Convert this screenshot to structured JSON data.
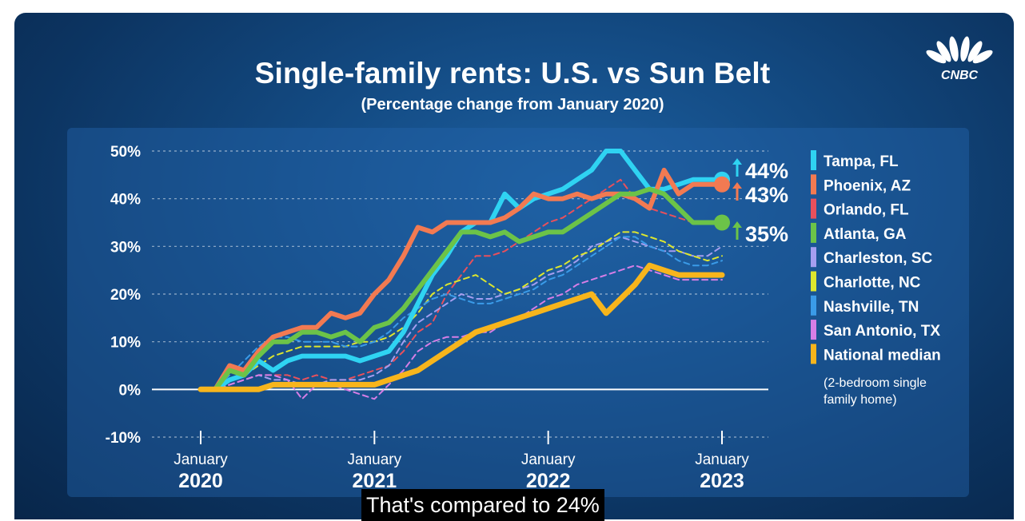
{
  "header": {
    "title": "Single-family rents: U.S. vs Sun Belt",
    "subtitle": "(Percentage change from January 2020)",
    "logo_text": "CNBC"
  },
  "caption": "That's compared to 24%",
  "colors": {
    "tampa": "#2fd3f2",
    "phoenix": "#f27a52",
    "orlando": "#e8505c",
    "atlanta": "#6cc348",
    "charleston": "#a59ef0",
    "charlotte": "#dde62e",
    "nashville": "#3a9be8",
    "san_antonio": "#d67ee6",
    "national": "#f7b51c"
  },
  "chart_data": {
    "type": "line",
    "title": "Single-family rents: U.S. vs Sun Belt",
    "subtitle": "(Percentage change from January 2020)",
    "y_unit": "%",
    "ylim": [
      -10,
      50
    ],
    "yticks": [
      "50%",
      "40%",
      "30%",
      "20%",
      "10%",
      "0%",
      "-10%"
    ],
    "x_range": [
      0,
      36
    ],
    "x_ticks": [
      {
        "x": 0,
        "month": "January",
        "year": "2020"
      },
      {
        "x": 12,
        "month": "January",
        "year": "2021"
      },
      {
        "x": 24,
        "month": "January",
        "year": "2022"
      },
      {
        "x": 36,
        "month": "January",
        "year": "2023"
      }
    ],
    "legend_position": "right",
    "note": "(2-bedroom single family home)",
    "note_lines": [
      "(2-bedroom single",
      "family home)"
    ],
    "end_labels": [
      {
        "series": "Tampa, FL",
        "text": "44%",
        "value": 44
      },
      {
        "series": "Phoenix, AZ",
        "text": "43%",
        "value": 43
      },
      {
        "series": "Atlanta, GA",
        "text": "35%",
        "value": 35
      }
    ],
    "series": [
      {
        "name": "Tampa, FL",
        "color": "#2fd3f2",
        "width": 6,
        "dash": false,
        "values": [
          0,
          0,
          2,
          3,
          6,
          4,
          6,
          7,
          7,
          7,
          7,
          6,
          7,
          8,
          12,
          18,
          24,
          28,
          33,
          35,
          35,
          41,
          38,
          40,
          41,
          42,
          44,
          46,
          50,
          50,
          46,
          42,
          42,
          43,
          44,
          44,
          44
        ]
      },
      {
        "name": "Phoenix, AZ",
        "color": "#f27a52",
        "width": 6,
        "dash": false,
        "values": [
          0,
          0,
          5,
          4,
          8,
          11,
          12,
          13,
          13,
          16,
          15,
          16,
          20,
          23,
          28,
          34,
          33,
          35,
          35,
          35,
          35,
          36,
          38,
          41,
          40,
          40,
          41,
          40,
          41,
          41,
          40,
          38,
          46,
          41,
          43,
          43,
          43
        ]
      },
      {
        "name": "Orlando, FL",
        "color": "#e8505c",
        "width": 2,
        "dash": true,
        "values": [
          0,
          0,
          1,
          2,
          3,
          3,
          3,
          2,
          3,
          2,
          2,
          3,
          4,
          5,
          8,
          12,
          14,
          20,
          24,
          28,
          28,
          29,
          31,
          33,
          35,
          36,
          38,
          40,
          42,
          44,
          40,
          38,
          37,
          36,
          35,
          35,
          35
        ]
      },
      {
        "name": "Atlanta, GA",
        "color": "#6cc348",
        "width": 6,
        "dash": false,
        "values": [
          0,
          0,
          4,
          3,
          7,
          10,
          10,
          12,
          12,
          11,
          12,
          10,
          13,
          14,
          17,
          21,
          25,
          29,
          33,
          33,
          32,
          33,
          31,
          32,
          33,
          33,
          35,
          37,
          39,
          41,
          41,
          42,
          41,
          38,
          35,
          35,
          35
        ]
      },
      {
        "name": "Charleston, SC",
        "color": "#a59ef0",
        "width": 2,
        "dash": true,
        "values": [
          0,
          0,
          1,
          2,
          3,
          2,
          2,
          1,
          1,
          2,
          2,
          2,
          3,
          5,
          10,
          14,
          16,
          18,
          20,
          19,
          19,
          20,
          21,
          22,
          24,
          25,
          27,
          30,
          31,
          32,
          31,
          30,
          29,
          29,
          28,
          28,
          30
        ]
      },
      {
        "name": "Charlotte, NC",
        "color": "#dde62e",
        "width": 2,
        "dash": true,
        "values": [
          0,
          0,
          2,
          3,
          5,
          7,
          8,
          9,
          9,
          9,
          9,
          10,
          10,
          11,
          13,
          16,
          20,
          22,
          23,
          24,
          22,
          20,
          21,
          23,
          25,
          26,
          28,
          29,
          31,
          33,
          33,
          32,
          31,
          29,
          28,
          27,
          28
        ]
      },
      {
        "name": "Nashville, TN",
        "color": "#3a9be8",
        "width": 2,
        "dash": true,
        "values": [
          0,
          0,
          3,
          6,
          9,
          11,
          11,
          10,
          10,
          10,
          9,
          9,
          10,
          12,
          15,
          17,
          19,
          20,
          19,
          18,
          18,
          19,
          20,
          21,
          23,
          24,
          26,
          28,
          30,
          32,
          32,
          30,
          29,
          27,
          26,
          26,
          27
        ]
      },
      {
        "name": "San Antonio, TX",
        "color": "#d67ee6",
        "width": 2,
        "dash": true,
        "values": [
          0,
          0,
          1,
          2,
          3,
          3,
          2,
          -2,
          1,
          1,
          0,
          -1,
          -2,
          1,
          4,
          8,
          10,
          11,
          11,
          12,
          12,
          14,
          15,
          17,
          19,
          20,
          22,
          23,
          24,
          25,
          26,
          25,
          24,
          23,
          23,
          23,
          23
        ]
      },
      {
        "name": "National median",
        "color": "#f7b51c",
        "width": 7,
        "dash": false,
        "values": [
          0,
          0,
          0,
          0,
          0,
          1,
          1,
          1,
          1,
          1,
          1,
          1,
          1,
          2,
          3,
          4,
          6,
          8,
          10,
          12,
          13,
          14,
          15,
          16,
          17,
          18,
          19,
          20,
          16,
          19,
          22,
          26,
          25,
          24,
          24,
          24,
          24
        ]
      }
    ]
  }
}
